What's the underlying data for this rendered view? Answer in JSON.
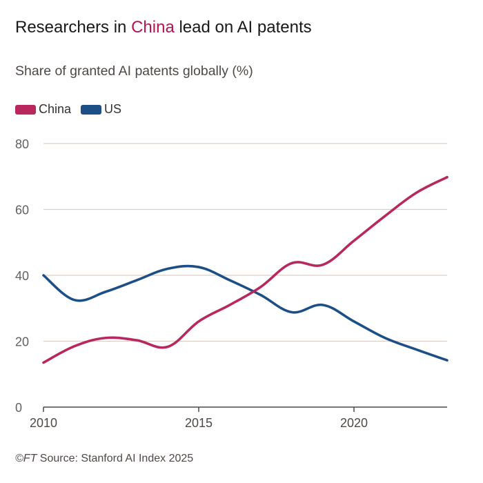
{
  "header": {
    "title_before": "Researchers in ",
    "title_highlight": "China",
    "title_after": " lead on AI patents",
    "subtitle": "Share of granted AI patents globally (%)"
  },
  "footer": {
    "copyright": "©FT",
    "source": " Source: Stanford AI Index 2025"
  },
  "colors": {
    "china": "#b8275d",
    "us": "#1d4f87"
  },
  "chart_data": {
    "type": "line",
    "title": "Researchers in China lead on AI patents",
    "subtitle": "Share of granted AI patents globally (%)",
    "xlabel": "",
    "ylabel": "",
    "xlim": [
      2010,
      2023
    ],
    "ylim": [
      0,
      80
    ],
    "yticks": [
      0,
      20,
      40,
      60,
      80
    ],
    "xticks": [
      2010,
      2015,
      2020
    ],
    "legend_position": "top-left",
    "series": [
      {
        "name": "China",
        "color": "#b8275d",
        "x": [
          2010,
          2011,
          2012,
          2013,
          2014,
          2015,
          2016,
          2017,
          2018,
          2019,
          2020,
          2021,
          2022,
          2023
        ],
        "values": [
          13.5,
          18.5,
          21,
          20.3,
          18.3,
          26,
          31,
          36.5,
          43.7,
          43.2,
          50.5,
          58,
          65,
          69.8
        ]
      },
      {
        "name": "US",
        "color": "#1d4f87",
        "x": [
          2010,
          2011,
          2012,
          2013,
          2014,
          2015,
          2016,
          2017,
          2018,
          2019,
          2020,
          2021,
          2022,
          2023
        ],
        "values": [
          40,
          32.5,
          35,
          38.5,
          42,
          42.5,
          38.5,
          34,
          28.8,
          31,
          26,
          21,
          17.5,
          14.2
        ]
      }
    ],
    "source": "©FT Source: Stanford AI Index 2025"
  }
}
